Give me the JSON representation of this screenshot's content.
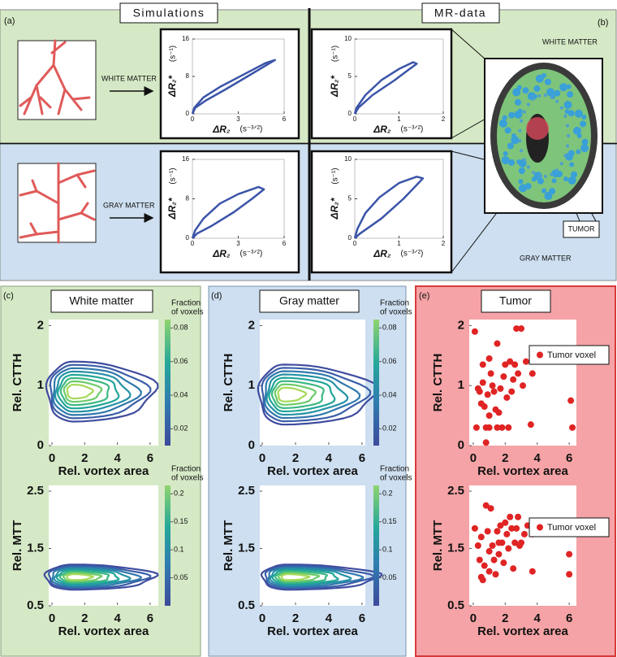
{
  "headers": {
    "simulations": "Simulations",
    "mr_data": "MR-data"
  },
  "panel_letters": [
    "(a)",
    "(b)",
    "(c)",
    "(d)",
    "(e)"
  ],
  "labels": {
    "sim_white": "WHITE MATTER",
    "sim_gray": "GRAY MATTER",
    "mr_white": "WHITE MATTER",
    "mr_gray": "GRAY MATTER",
    "tumor": "TUMOR"
  },
  "loop_plots": [
    {
      "xlabel": "ΔR₂",
      "xunit": "(s⁻³ᐟ²)",
      "ylabel": "ΔR₂*",
      "yunit": "(s⁻¹)",
      "xlim": [
        0,
        6
      ],
      "xticks": [
        0,
        3,
        6
      ],
      "ylim": [
        0,
        16
      ],
      "yticks": [
        0,
        8,
        16
      ]
    },
    {
      "xlabel": "ΔR₂",
      "xunit": "(s⁻³ᐟ²)",
      "ylabel": "ΔR₂*",
      "yunit": "(s⁻¹)",
      "xlim": [
        0,
        6
      ],
      "xticks": [
        0,
        3,
        6
      ],
      "ylim": [
        0,
        16
      ],
      "yticks": [
        0,
        8,
        16
      ]
    },
    {
      "xlabel": "ΔR₂",
      "xunit": "(s⁻³ᐟ²)",
      "ylabel": "ΔR₂*",
      "yunit": "(s⁻¹)",
      "xlim": [
        0,
        2
      ],
      "xticks": [
        0,
        1,
        2
      ],
      "ylim": [
        0,
        10
      ],
      "yticks": [
        0,
        5,
        10
      ]
    },
    {
      "xlabel": "ΔR₂",
      "xunit": "(s⁻³ᐟ²)",
      "ylabel": "ΔR₂*",
      "yunit": "(s⁻¹)",
      "xlim": [
        0,
        2
      ],
      "xticks": [
        0,
        1,
        2
      ],
      "ylim": [
        0,
        10
      ],
      "yticks": [
        0,
        5,
        10
      ]
    }
  ],
  "bottom_titles": [
    "White matter",
    "Gray matter",
    "Tumor"
  ],
  "contour_plots": [
    {
      "ylabel": "Rel. CTTH",
      "xlabel": "Rel. vortex area",
      "xlim": [
        -0.2,
        6.5
      ],
      "xticks": [
        0,
        2,
        4,
        6
      ],
      "ylim": [
        0,
        2.1
      ],
      "yticks": [
        0,
        1,
        2
      ],
      "colorbar_label": [
        "Fraction",
        "of voxels"
      ],
      "clim": [
        0.01,
        0.085
      ],
      "cticks": [
        0.02,
        0.04,
        0.06,
        0.08
      ]
    },
    {
      "ylabel": "Rel. MTT",
      "xlabel": "Rel. vortex area",
      "xlim": [
        -0.2,
        6.5
      ],
      "xticks": [
        0,
        2,
        4,
        6
      ],
      "ylim": [
        0.5,
        2.6
      ],
      "yticks": [
        0.5,
        1.5,
        2.5
      ],
      "colorbar_label": [
        "Fraction",
        "of voxels"
      ],
      "clim": [
        0,
        0.215
      ],
      "cticks": [
        0.05,
        0.1,
        0.15,
        0.2
      ]
    },
    {
      "ylabel": "Rel. CTTH",
      "xlabel": "Rel. vortex area",
      "xlim": [
        -0.15,
        6.2
      ],
      "xticks": [
        0,
        2,
        4,
        6
      ],
      "ylim": [
        0,
        2.1
      ],
      "yticks": [
        0,
        1,
        2
      ],
      "colorbar_label": [
        "Fraction",
        "of voxels"
      ],
      "clim": [
        0.01,
        0.085
      ],
      "cticks": [
        0.02,
        0.04,
        0.06,
        0.08
      ]
    },
    {
      "ylabel": "Rel. MTT",
      "xlabel": "Rel. vortex area",
      "xlim": [
        -0.15,
        6.2
      ],
      "xticks": [
        0,
        2,
        4,
        6
      ],
      "ylim": [
        0.5,
        2.6
      ],
      "yticks": [
        0.5,
        1.5,
        2.5
      ],
      "colorbar_label": [
        "Fraction",
        "of voxels"
      ],
      "clim": [
        0,
        0.215
      ],
      "cticks": [
        0.05,
        0.1,
        0.15,
        0.2
      ]
    }
  ],
  "scatter_plots": [
    {
      "type": "scatter",
      "ylabel": "Rel. CTTH",
      "xlabel": "Rel. vortex area",
      "legend": "Tumor voxel",
      "color": "#e02424",
      "xlim": [
        -0.25,
        6.45
      ],
      "xticks": [
        0,
        2,
        4,
        6
      ],
      "ylim": [
        0,
        2.1
      ],
      "yticks": [
        0,
        1,
        2
      ],
      "x": [
        0.1,
        0.3,
        0.4,
        0.2,
        0.5,
        0.6,
        0.8,
        0.9,
        1.0,
        1.1,
        1.0,
        1.3,
        1.4,
        1.5,
        1.6,
        1.7,
        1.8,
        1.9,
        2.0,
        2.1,
        2.2,
        2.3,
        2.5,
        2.6,
        2.7,
        2.8,
        3.0,
        3.1,
        3.3,
        3.6,
        3.7,
        0.8,
        1.2,
        0.7,
        2.4,
        6.1,
        6.2,
        1.5,
        1.0,
        0.6
      ],
      "y": [
        1.9,
        0.95,
        0.9,
        0.3,
        0.7,
        1.05,
        0.3,
        0.85,
        0.3,
        1.2,
        1.45,
        0.9,
        0.6,
        1.7,
        0.55,
        0.95,
        0.3,
        1.15,
        1.35,
        0.8,
        0.3,
        1.4,
        1.1,
        1.35,
        1.95,
        1.2,
        1.95,
        1.0,
        1.4,
        0.35,
        1.2,
        0.05,
        1.0,
        0.65,
        0.9,
        0.75,
        0.3,
        0.3,
        0.5,
        1.35
      ]
    },
    {
      "type": "scatter",
      "ylabel": "Rel. MTT",
      "xlabel": "Rel. vortex area",
      "legend": "Tumor voxel",
      "color": "#e02424",
      "xlim": [
        -0.25,
        6.45
      ],
      "xticks": [
        0,
        2,
        4,
        6
      ],
      "ylim": [
        0.5,
        2.6
      ],
      "yticks": [
        0.5,
        1.5,
        2.5
      ],
      "x": [
        0.1,
        0.3,
        0.4,
        0.5,
        0.6,
        0.7,
        0.8,
        0.9,
        1.0,
        1.1,
        1.2,
        1.3,
        1.4,
        1.5,
        1.6,
        1.7,
        1.8,
        1.9,
        2.0,
        2.1,
        2.2,
        2.3,
        2.4,
        2.5,
        2.6,
        2.7,
        2.8,
        3.0,
        3.2,
        3.4,
        3.7,
        3.7,
        6.0,
        6.0,
        0.5,
        1.0,
        2.9,
        1.6
      ],
      "y": [
        1.85,
        1.55,
        1.3,
        1.0,
        0.95,
        1.2,
        2.25,
        1.8,
        1.45,
        2.2,
        1.55,
        1.3,
        1.05,
        1.8,
        1.4,
        1.9,
        1.6,
        1.25,
        1.95,
        1.75,
        1.5,
        2.05,
        1.85,
        1.15,
        1.6,
        1.85,
        2.05,
        1.6,
        1.75,
        1.9,
        1.75,
        1.1,
        1.4,
        1.05,
        1.7,
        1.1,
        1.55,
        1.6
      ]
    }
  ]
}
